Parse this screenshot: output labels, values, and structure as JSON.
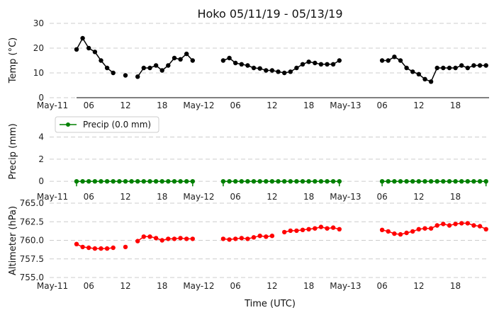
{
  "chart_data": {
    "title": "Hoko 05/11/19 - 05/13/19",
    "xlabel": "Time (UTC)",
    "x_ticks": [
      "May-11",
      "06",
      "12",
      "18",
      "May-12",
      "06",
      "12",
      "18",
      "May-13",
      "06",
      "12",
      "18"
    ],
    "x_range_hours": [
      0,
      71.5
    ],
    "panels": [
      {
        "type": "line",
        "ylabel": "Temp (°C)",
        "ylim": [
          0,
          30
        ],
        "yticks": [
          "0",
          "10",
          "20",
          "30"
        ],
        "color": "#000000",
        "series": [
          {
            "name": "Temp",
            "points": [
              [
                4,
                19.5
              ],
              [
                5,
                24
              ],
              [
                6,
                20
              ],
              [
                7,
                18.5
              ],
              [
                8,
                15
              ],
              [
                9,
                12
              ],
              [
                10,
                10
              ],
              [
                12,
                9
              ],
              [
                14,
                8.5
              ],
              [
                15,
                12
              ],
              [
                16,
                12
              ],
              [
                17,
                13
              ],
              [
                18,
                11
              ],
              [
                19,
                13
              ],
              [
                20,
                16
              ],
              [
                21,
                15.5
              ],
              [
                22,
                17.7
              ],
              [
                23,
                15
              ],
              [
                28,
                15
              ],
              [
                29,
                16
              ],
              [
                30,
                14
              ],
              [
                31,
                13.5
              ],
              [
                32,
                13
              ],
              [
                33,
                12
              ],
              [
                34,
                11.8
              ],
              [
                35,
                11
              ],
              [
                36,
                11
              ],
              [
                37,
                10.5
              ],
              [
                38,
                10
              ],
              [
                39,
                10.5
              ],
              [
                40,
                12
              ],
              [
                41,
                13.5
              ],
              [
                42,
                14.5
              ],
              [
                43,
                14
              ],
              [
                44,
                13.5
              ],
              [
                45,
                13.5
              ],
              [
                46,
                13.5
              ],
              [
                47,
                15
              ],
              [
                54,
                15
              ],
              [
                55,
                15
              ],
              [
                56,
                16.5
              ],
              [
                57,
                15
              ],
              [
                58,
                12
              ],
              [
                59,
                10.5
              ],
              [
                60,
                9.5
              ],
              [
                61,
                7.5
              ],
              [
                62,
                6.5
              ],
              [
                63,
                12
              ],
              [
                64,
                12
              ],
              [
                65,
                12
              ],
              [
                66,
                12
              ],
              [
                67,
                13
              ],
              [
                68,
                12
              ],
              [
                69,
                13
              ],
              [
                70,
                13
              ],
              [
                71,
                13
              ]
            ]
          }
        ]
      },
      {
        "type": "line",
        "ylabel": "Precip (mm)",
        "ylim": [
          -0.5,
          5
        ],
        "yticks": [
          "0",
          "2",
          "4"
        ],
        "color": "#008000",
        "legend": {
          "label": "Precip (0.0 mm)",
          "placement": "upper-left"
        },
        "series": [
          {
            "name": "Precip (0.0 mm)",
            "points": [
              [
                4,
                0
              ],
              [
                5,
                0
              ],
              [
                6,
                0
              ],
              [
                7,
                0
              ],
              [
                8,
                0
              ],
              [
                9,
                0
              ],
              [
                10,
                0
              ],
              [
                11,
                0
              ],
              [
                12,
                0
              ],
              [
                13,
                0
              ],
              [
                14,
                0
              ],
              [
                15,
                0
              ],
              [
                16,
                0
              ],
              [
                17,
                0
              ],
              [
                18,
                0
              ],
              [
                19,
                0
              ],
              [
                20,
                0
              ],
              [
                21,
                0
              ],
              [
                22,
                0
              ],
              [
                23,
                0
              ],
              [
                28,
                0
              ],
              [
                29,
                0
              ],
              [
                30,
                0
              ],
              [
                31,
                0
              ],
              [
                32,
                0
              ],
              [
                33,
                0
              ],
              [
                34,
                0
              ],
              [
                35,
                0
              ],
              [
                36,
                0
              ],
              [
                37,
                0
              ],
              [
                38,
                0
              ],
              [
                39,
                0
              ],
              [
                40,
                0
              ],
              [
                41,
                0
              ],
              [
                42,
                0
              ],
              [
                43,
                0
              ],
              [
                44,
                0
              ],
              [
                45,
                0
              ],
              [
                46,
                0
              ],
              [
                47,
                0
              ],
              [
                54,
                0
              ],
              [
                55,
                0
              ],
              [
                56,
                0
              ],
              [
                57,
                0
              ],
              [
                58,
                0
              ],
              [
                59,
                0
              ],
              [
                60,
                0
              ],
              [
                61,
                0
              ],
              [
                62,
                0
              ],
              [
                63,
                0
              ],
              [
                64,
                0
              ],
              [
                65,
                0
              ],
              [
                66,
                0
              ],
              [
                67,
                0
              ],
              [
                68,
                0
              ],
              [
                69,
                0
              ],
              [
                70,
                0
              ],
              [
                71,
                0
              ]
            ]
          }
        ]
      },
      {
        "type": "line",
        "ylabel": "Altimeter (hPa)",
        "ylim": [
          755,
          765
        ],
        "yticks": [
          "755.0",
          "757.5",
          "760.0",
          "762.5",
          "765.0"
        ],
        "color": "#ff0000",
        "series": [
          {
            "name": "Altimeter",
            "points": [
              [
                4,
                759.5
              ],
              [
                5,
                759.1
              ],
              [
                6,
                759.0
              ],
              [
                7,
                758.9
              ],
              [
                8,
                758.9
              ],
              [
                9,
                758.9
              ],
              [
                10,
                759.0
              ],
              [
                12,
                759.1
              ],
              [
                14,
                759.9
              ],
              [
                15,
                760.5
              ],
              [
                16,
                760.5
              ],
              [
                17,
                760.3
              ],
              [
                18,
                760.0
              ],
              [
                19,
                760.2
              ],
              [
                20,
                760.2
              ],
              [
                21,
                760.3
              ],
              [
                22,
                760.2
              ],
              [
                23,
                760.2
              ],
              [
                28,
                760.2
              ],
              [
                29,
                760.1
              ],
              [
                30,
                760.2
              ],
              [
                31,
                760.3
              ],
              [
                32,
                760.2
              ],
              [
                33,
                760.4
              ],
              [
                34,
                760.6
              ],
              [
                35,
                760.5
              ],
              [
                36,
                760.6
              ],
              [
                38,
                761.1
              ],
              [
                39,
                761.3
              ],
              [
                40,
                761.3
              ],
              [
                41,
                761.4
              ],
              [
                42,
                761.5
              ],
              [
                43,
                761.6
              ],
              [
                44,
                761.8
              ],
              [
                45,
                761.6
              ],
              [
                46,
                761.7
              ],
              [
                47,
                761.5
              ],
              [
                54,
                761.4
              ],
              [
                55,
                761.2
              ],
              [
                56,
                760.9
              ],
              [
                57,
                760.8
              ],
              [
                58,
                761.0
              ],
              [
                59,
                761.2
              ],
              [
                60,
                761.5
              ],
              [
                61,
                761.6
              ],
              [
                62,
                761.6
              ],
              [
                63,
                762.0
              ],
              [
                64,
                762.2
              ],
              [
                65,
                762.0
              ],
              [
                66,
                762.2
              ],
              [
                67,
                762.3
              ],
              [
                68,
                762.3
              ],
              [
                69,
                762.0
              ],
              [
                70,
                761.9
              ],
              [
                71,
                761.5
              ]
            ]
          }
        ]
      }
    ]
  }
}
